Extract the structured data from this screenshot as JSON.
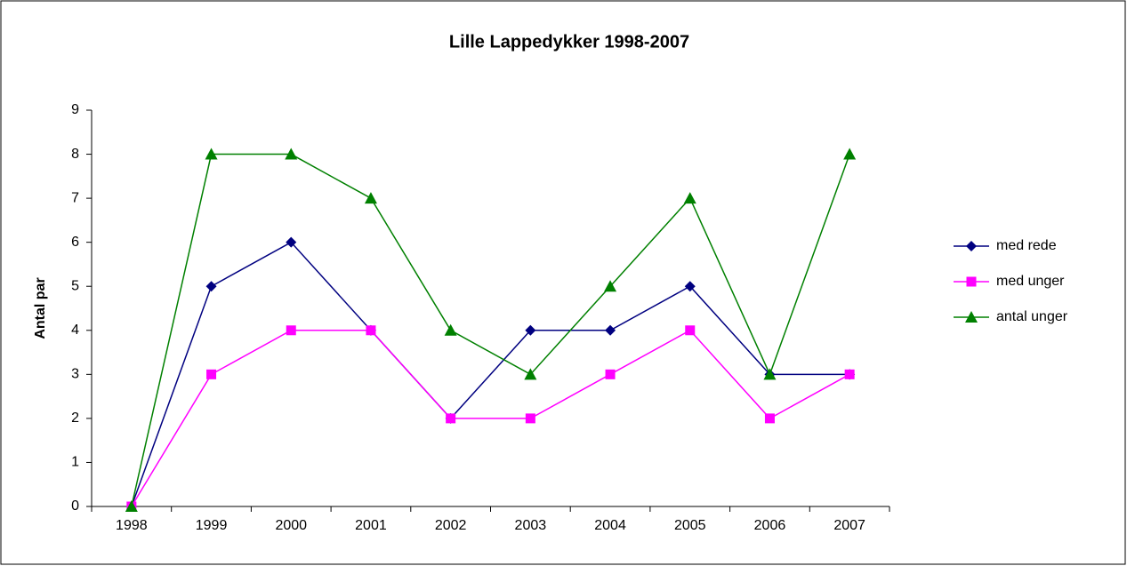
{
  "chart_data": {
    "type": "line",
    "title": "Lille Lappedykker 1998-2007",
    "ylabel": "Antal par",
    "categories": [
      "1998",
      "1999",
      "2000",
      "2001",
      "2002",
      "2003",
      "2004",
      "2005",
      "2006",
      "2007"
    ],
    "series": [
      {
        "name": "med rede",
        "color": "#000080",
        "marker": "diamond",
        "values": [
          0,
          5,
          6,
          4,
          2,
          4,
          4,
          5,
          3,
          3
        ]
      },
      {
        "name": "med unger",
        "color": "#ff00ff",
        "marker": "square",
        "values": [
          0,
          3,
          4,
          4,
          2,
          2,
          3,
          4,
          2,
          3
        ]
      },
      {
        "name": "antal unger",
        "color": "#008000",
        "marker": "triangle",
        "values": [
          0,
          8,
          8,
          7,
          4,
          3,
          5,
          7,
          3,
          8
        ]
      }
    ],
    "ylim": [
      0,
      9
    ],
    "yticks": [
      0,
      1,
      2,
      3,
      4,
      5,
      6,
      7,
      8,
      9
    ],
    "legend": "right",
    "grid": false
  }
}
